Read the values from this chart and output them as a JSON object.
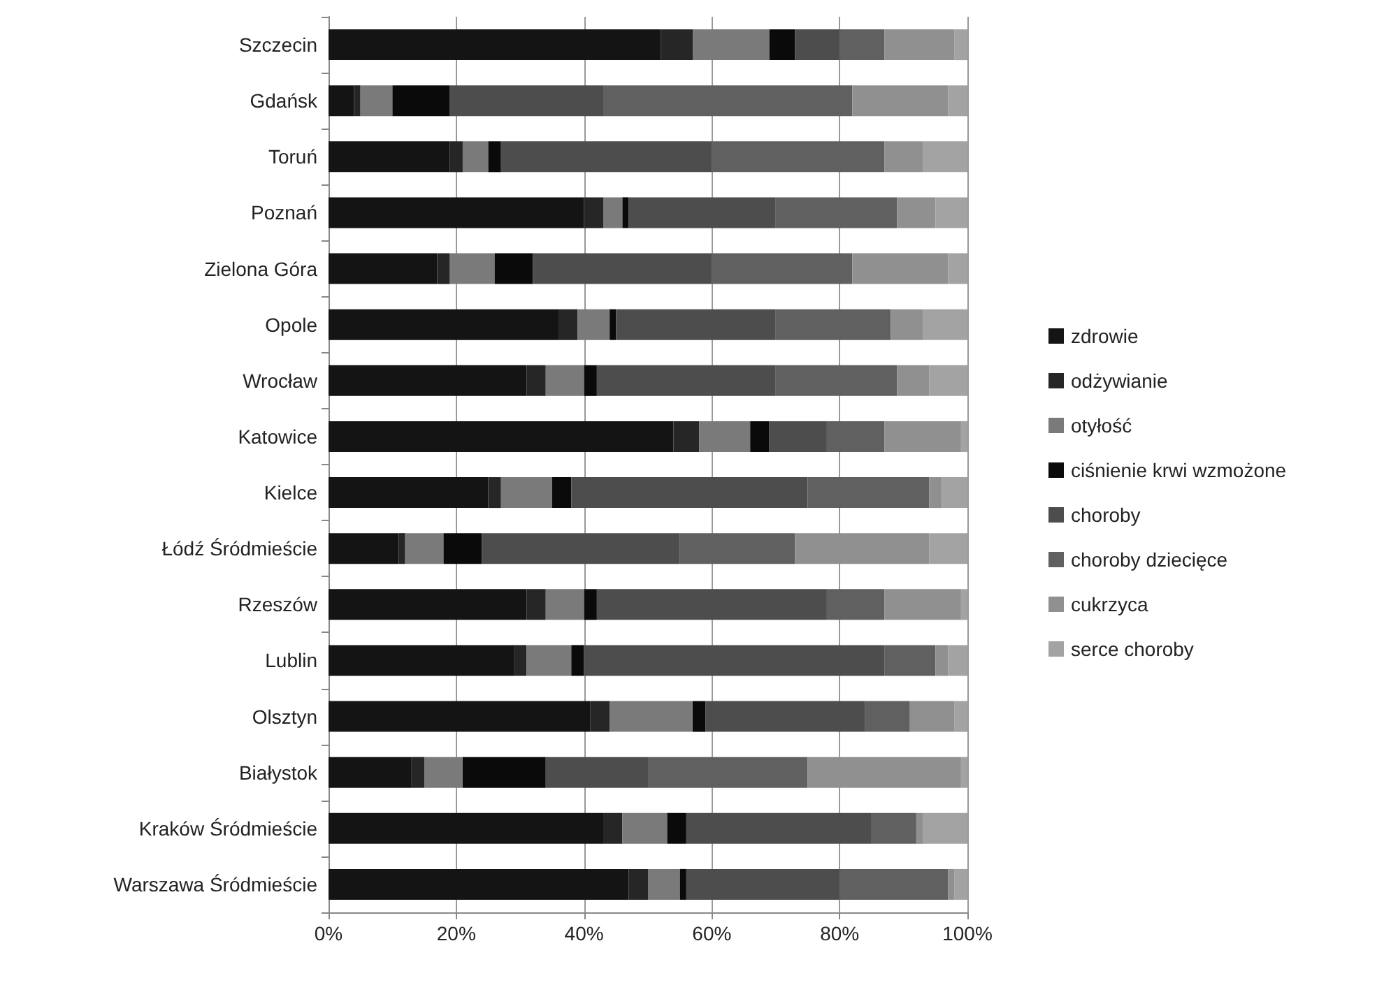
{
  "chart_data": {
    "type": "bar",
    "orientation": "horizontal",
    "stacked": true,
    "categories": [
      "Szczecin",
      "Gdańsk",
      "Toruń",
      "Poznań",
      "Zielona Góra",
      "Opole",
      "Wrocław",
      "Katowice",
      "Kielce",
      "Łódź Śródmieście",
      "Rzeszów",
      "Lublin",
      "Olsztyn",
      "Białystok",
      "Kraków Śródmieście",
      "Warszawa Śródmieście"
    ],
    "series": [
      {
        "name": "zdrowie",
        "color": "#141414",
        "values": [
          52,
          4,
          19,
          40,
          17,
          36,
          31,
          54,
          25,
          11,
          31,
          29,
          41,
          13,
          43,
          47
        ]
      },
      {
        "name": "odżywianie",
        "color": "#262626",
        "values": [
          5,
          1,
          2,
          3,
          2,
          3,
          3,
          4,
          2,
          1,
          3,
          2,
          3,
          2,
          3,
          3
        ]
      },
      {
        "name": "otyłość",
        "color": "#7a7a7a",
        "values": [
          12,
          5,
          4,
          3,
          7,
          5,
          6,
          8,
          8,
          6,
          6,
          7,
          13,
          6,
          7,
          5
        ]
      },
      {
        "name": "ciśnienie krwi wzmożone",
        "color": "#0a0a0a",
        "values": [
          4,
          9,
          2,
          1,
          6,
          1,
          2,
          3,
          3,
          6,
          2,
          2,
          2,
          13,
          3,
          1
        ]
      },
      {
        "name": "choroby",
        "color": "#4d4d4d",
        "values": [
          7,
          24,
          33,
          23,
          28,
          25,
          28,
          9,
          37,
          31,
          36,
          47,
          25,
          16,
          29,
          24
        ]
      },
      {
        "name": "choroby dziecięce",
        "color": "#606060",
        "values": [
          7,
          39,
          27,
          19,
          22,
          18,
          19,
          9,
          19,
          18,
          9,
          8,
          7,
          25,
          7,
          17
        ]
      },
      {
        "name": "cukrzyca",
        "color": "#909090",
        "values": [
          11,
          15,
          6,
          6,
          15,
          5,
          5,
          12,
          2,
          21,
          12,
          2,
          7,
          24,
          1,
          1
        ]
      },
      {
        "name": "serce choroby",
        "color": "#a3a3a3",
        "values": [
          2,
          3,
          7,
          5,
          3,
          7,
          6,
          1,
          4,
          6,
          1,
          3,
          2,
          1,
          7,
          2
        ]
      }
    ],
    "xlim": [
      0,
      100
    ],
    "xticks": [
      {
        "value": 0,
        "label": "0%"
      },
      {
        "value": 20,
        "label": "20%"
      },
      {
        "value": 40,
        "label": "40%"
      },
      {
        "value": 60,
        "label": "60%"
      },
      {
        "value": 80,
        "label": "80%"
      },
      {
        "value": 100,
        "label": "100%"
      }
    ],
    "grid": "x",
    "legend": "right"
  }
}
